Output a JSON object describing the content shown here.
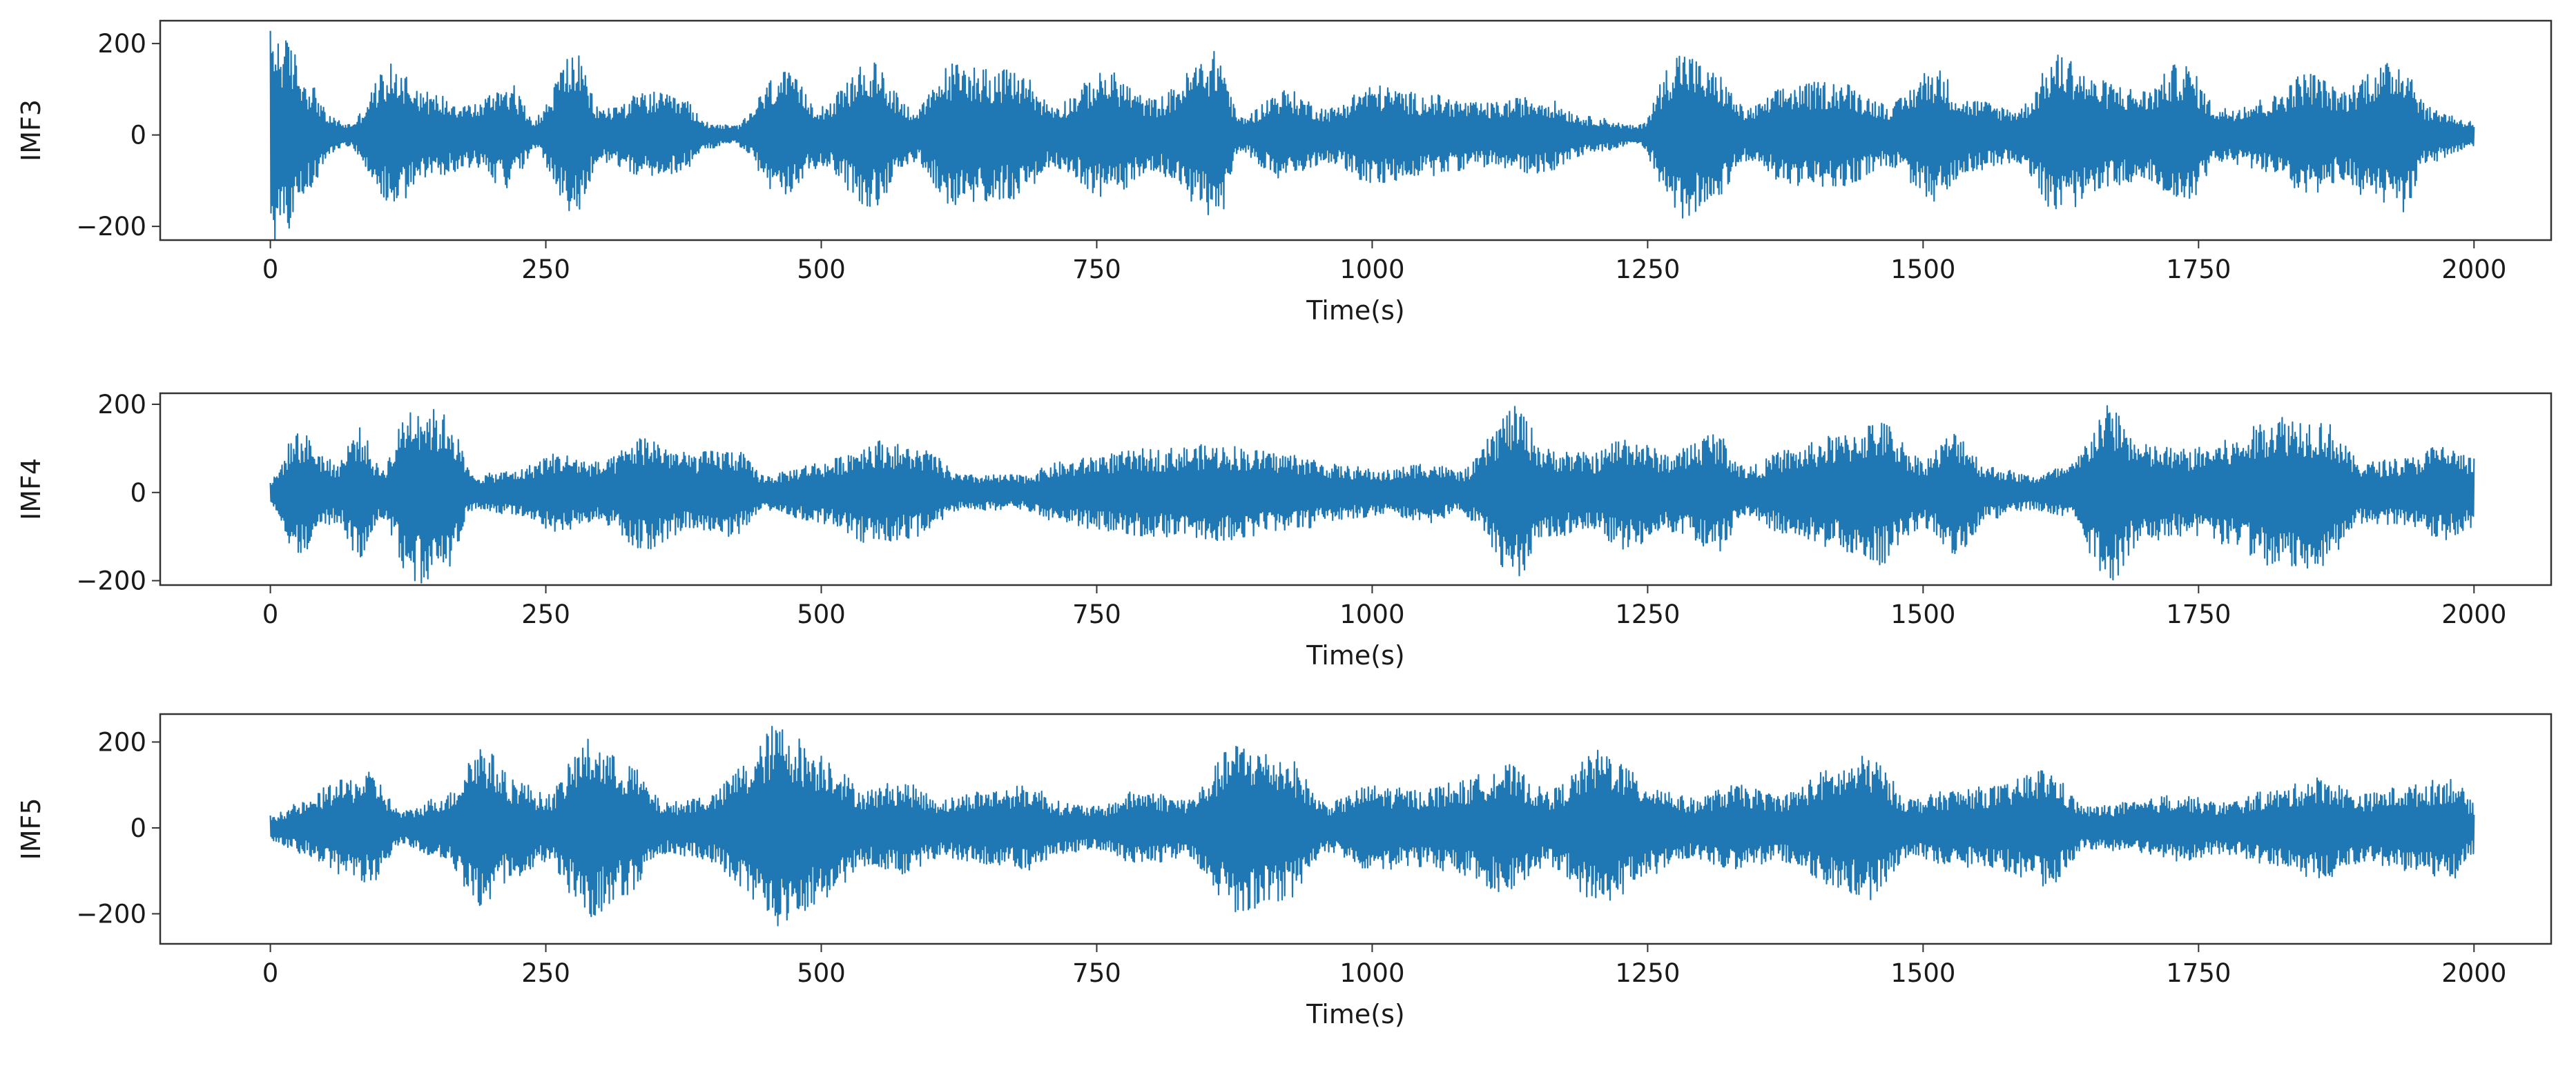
{
  "figure": {
    "background": "#ffffff",
    "line_color": "#1f77b4",
    "axes_color": "#333333"
  },
  "chart_data": [
    {
      "type": "line",
      "ylabel": "IMF3",
      "xlabel": "Time(s)",
      "xlim": [
        -100,
        2070
      ],
      "ylim": [
        -230,
        250
      ],
      "xticks": [
        0,
        250,
        500,
        750,
        1000,
        1250,
        1500,
        1750,
        2000
      ],
      "xtick_labels": [
        "0",
        "250",
        "500",
        "750",
        "1000",
        "1250",
        "1500",
        "1750",
        "2000"
      ],
      "yticks": [
        200,
        0,
        -200
      ],
      "ytick_labels": [
        "200",
        "0",
        "−200"
      ],
      "grid": false,
      "series": [
        {
          "x_range": [
            0,
            2000
          ],
          "envelope": [
            {
              "t": 0,
              "a": 235
            },
            {
              "t": 15,
              "a": 210
            },
            {
              "t": 35,
              "a": 120
            },
            {
              "t": 55,
              "a": 40
            },
            {
              "t": 70,
              "a": 25
            },
            {
              "t": 110,
              "a": 155
            },
            {
              "t": 150,
              "a": 90
            },
            {
              "t": 185,
              "a": 70
            },
            {
              "t": 215,
              "a": 120
            },
            {
              "t": 240,
              "a": 40
            },
            {
              "t": 275,
              "a": 185
            },
            {
              "t": 300,
              "a": 60
            },
            {
              "t": 345,
              "a": 95
            },
            {
              "t": 375,
              "a": 80
            },
            {
              "t": 395,
              "a": 30
            },
            {
              "t": 420,
              "a": 20
            },
            {
              "t": 465,
              "a": 140
            },
            {
              "t": 500,
              "a": 70
            },
            {
              "t": 545,
              "a": 160
            },
            {
              "t": 585,
              "a": 60
            },
            {
              "t": 620,
              "a": 160
            },
            {
              "t": 680,
              "a": 140
            },
            {
              "t": 710,
              "a": 70
            },
            {
              "t": 760,
              "a": 140
            },
            {
              "t": 800,
              "a": 80
            },
            {
              "t": 860,
              "a": 185
            },
            {
              "t": 880,
              "a": 40
            },
            {
              "t": 920,
              "a": 100
            },
            {
              "t": 960,
              "a": 60
            },
            {
              "t": 1000,
              "a": 110
            },
            {
              "t": 1050,
              "a": 90
            },
            {
              "t": 1100,
              "a": 70
            },
            {
              "t": 1150,
              "a": 85
            },
            {
              "t": 1200,
              "a": 40
            },
            {
              "t": 1240,
              "a": 20
            },
            {
              "t": 1280,
              "a": 190
            },
            {
              "t": 1310,
              "a": 140
            },
            {
              "t": 1340,
              "a": 60
            },
            {
              "t": 1380,
              "a": 110
            },
            {
              "t": 1420,
              "a": 120
            },
            {
              "t": 1470,
              "a": 70
            },
            {
              "t": 1510,
              "a": 150
            },
            {
              "t": 1540,
              "a": 80
            },
            {
              "t": 1585,
              "a": 60
            },
            {
              "t": 1625,
              "a": 180
            },
            {
              "t": 1660,
              "a": 120
            },
            {
              "t": 1700,
              "a": 100
            },
            {
              "t": 1735,
              "a": 160
            },
            {
              "t": 1770,
              "a": 60
            },
            {
              "t": 1810,
              "a": 80
            },
            {
              "t": 1850,
              "a": 140
            },
            {
              "t": 1880,
              "a": 100
            },
            {
              "t": 1910,
              "a": 150
            },
            {
              "t": 1935,
              "a": 170
            },
            {
              "t": 1960,
              "a": 60
            },
            {
              "t": 2000,
              "a": 30
            }
          ]
        }
      ]
    },
    {
      "type": "line",
      "ylabel": "IMF4",
      "xlabel": "Time(s)",
      "xlim": [
        -100,
        2070
      ],
      "ylim": [
        -210,
        225
      ],
      "xticks": [
        0,
        250,
        500,
        750,
        1000,
        1250,
        1500,
        1750,
        2000
      ],
      "xtick_labels": [
        "0",
        "250",
        "500",
        "750",
        "1000",
        "1250",
        "1500",
        "1750",
        "2000"
      ],
      "yticks": [
        200,
        0,
        -200
      ],
      "ytick_labels": [
        "200",
        "0",
        "−200"
      ],
      "grid": false,
      "series": [
        {
          "x_range": [
            0,
            2000
          ],
          "envelope": [
            {
              "t": 0,
              "a": 30
            },
            {
              "t": 25,
              "a": 140
            },
            {
              "t": 60,
              "a": 70
            },
            {
              "t": 80,
              "a": 150
            },
            {
              "t": 100,
              "a": 60
            },
            {
              "t": 130,
              "a": 210
            },
            {
              "t": 160,
              "a": 180
            },
            {
              "t": 185,
              "a": 40
            },
            {
              "t": 220,
              "a": 50
            },
            {
              "t": 260,
              "a": 90
            },
            {
              "t": 300,
              "a": 70
            },
            {
              "t": 340,
              "a": 130
            },
            {
              "t": 380,
              "a": 90
            },
            {
              "t": 420,
              "a": 100
            },
            {
              "t": 450,
              "a": 40
            },
            {
              "t": 500,
              "a": 70
            },
            {
              "t": 550,
              "a": 120
            },
            {
              "t": 590,
              "a": 100
            },
            {
              "t": 630,
              "a": 40
            },
            {
              "t": 680,
              "a": 40
            },
            {
              "t": 720,
              "a": 70
            },
            {
              "t": 760,
              "a": 90
            },
            {
              "t": 800,
              "a": 100
            },
            {
              "t": 860,
              "a": 110
            },
            {
              "t": 920,
              "a": 90
            },
            {
              "t": 980,
              "a": 60
            },
            {
              "t": 1010,
              "a": 50
            },
            {
              "t": 1050,
              "a": 70
            },
            {
              "t": 1080,
              "a": 50
            },
            {
              "t": 1130,
              "a": 195
            },
            {
              "t": 1160,
              "a": 100
            },
            {
              "t": 1200,
              "a": 90
            },
            {
              "t": 1230,
              "a": 130
            },
            {
              "t": 1270,
              "a": 90
            },
            {
              "t": 1310,
              "a": 140
            },
            {
              "t": 1340,
              "a": 60
            },
            {
              "t": 1380,
              "a": 100
            },
            {
              "t": 1420,
              "a": 130
            },
            {
              "t": 1460,
              "a": 165
            },
            {
              "t": 1500,
              "a": 80
            },
            {
              "t": 1530,
              "a": 140
            },
            {
              "t": 1560,
              "a": 60
            },
            {
              "t": 1600,
              "a": 40
            },
            {
              "t": 1630,
              "a": 60
            },
            {
              "t": 1670,
              "a": 200
            },
            {
              "t": 1700,
              "a": 110
            },
            {
              "t": 1740,
              "a": 100
            },
            {
              "t": 1780,
              "a": 120
            },
            {
              "t": 1820,
              "a": 180
            },
            {
              "t": 1860,
              "a": 170
            },
            {
              "t": 1900,
              "a": 70
            },
            {
              "t": 1940,
              "a": 80
            },
            {
              "t": 1970,
              "a": 110
            },
            {
              "t": 2000,
              "a": 80
            }
          ]
        }
      ]
    },
    {
      "type": "line",
      "ylabel": "IMF5",
      "xlabel": "Time(s)",
      "xlim": [
        -100,
        2070
      ],
      "ylim": [
        -270,
        265
      ],
      "xticks": [
        0,
        250,
        500,
        750,
        1000,
        1250,
        1500,
        1750,
        2000
      ],
      "xtick_labels": [
        "0",
        "250",
        "500",
        "750",
        "1000",
        "1250",
        "1500",
        "1750",
        "2000"
      ],
      "yticks": [
        200,
        0,
        -200
      ],
      "ytick_labels": [
        "200",
        "0",
        "−200"
      ],
      "grid": false,
      "series": [
        {
          "x_range": [
            0,
            2000
          ],
          "envelope": [
            {
              "t": 0,
              "a": 30
            },
            {
              "t": 30,
              "a": 60
            },
            {
              "t": 60,
              "a": 110
            },
            {
              "t": 90,
              "a": 130
            },
            {
              "t": 120,
              "a": 40
            },
            {
              "t": 160,
              "a": 80
            },
            {
              "t": 190,
              "a": 200
            },
            {
              "t": 220,
              "a": 120
            },
            {
              "t": 250,
              "a": 80
            },
            {
              "t": 290,
              "a": 210
            },
            {
              "t": 320,
              "a": 160
            },
            {
              "t": 360,
              "a": 60
            },
            {
              "t": 400,
              "a": 80
            },
            {
              "t": 430,
              "a": 150
            },
            {
              "t": 460,
              "a": 245
            },
            {
              "t": 500,
              "a": 180
            },
            {
              "t": 540,
              "a": 90
            },
            {
              "t": 570,
              "a": 110
            },
            {
              "t": 610,
              "a": 70
            },
            {
              "t": 650,
              "a": 90
            },
            {
              "t": 690,
              "a": 100
            },
            {
              "t": 720,
              "a": 60
            },
            {
              "t": 750,
              "a": 50
            },
            {
              "t": 790,
              "a": 90
            },
            {
              "t": 830,
              "a": 70
            },
            {
              "t": 880,
              "a": 200
            },
            {
              "t": 920,
              "a": 170
            },
            {
              "t": 960,
              "a": 60
            },
            {
              "t": 1000,
              "a": 100
            },
            {
              "t": 1040,
              "a": 90
            },
            {
              "t": 1080,
              "a": 110
            },
            {
              "t": 1120,
              "a": 150
            },
            {
              "t": 1160,
              "a": 90
            },
            {
              "t": 1210,
              "a": 185
            },
            {
              "t": 1250,
              "a": 110
            },
            {
              "t": 1290,
              "a": 70
            },
            {
              "t": 1330,
              "a": 100
            },
            {
              "t": 1370,
              "a": 80
            },
            {
              "t": 1420,
              "a": 140
            },
            {
              "t": 1450,
              "a": 170
            },
            {
              "t": 1490,
              "a": 70
            },
            {
              "t": 1530,
              "a": 90
            },
            {
              "t": 1570,
              "a": 100
            },
            {
              "t": 1610,
              "a": 140
            },
            {
              "t": 1650,
              "a": 50
            },
            {
              "t": 1690,
              "a": 60
            },
            {
              "t": 1730,
              "a": 80
            },
            {
              "t": 1770,
              "a": 60
            },
            {
              "t": 1820,
              "a": 90
            },
            {
              "t": 1860,
              "a": 120
            },
            {
              "t": 1900,
              "a": 80
            },
            {
              "t": 1940,
              "a": 100
            },
            {
              "t": 1980,
              "a": 120
            },
            {
              "t": 2000,
              "a": 60
            }
          ]
        }
      ]
    }
  ]
}
